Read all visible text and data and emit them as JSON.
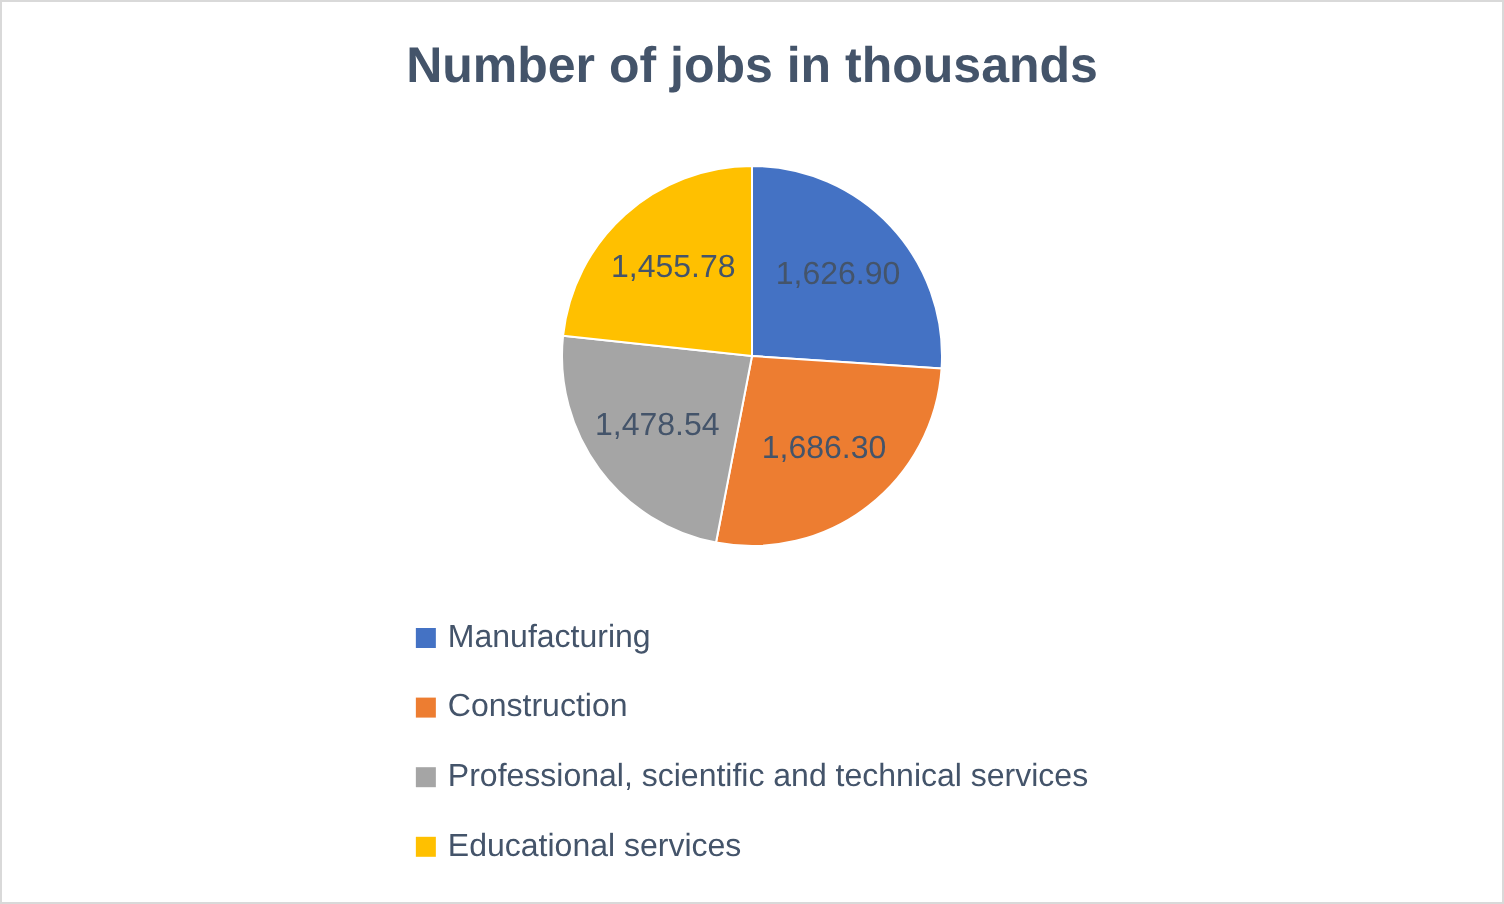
{
  "chart_data": {
    "type": "pie",
    "title": "Number of jobs in thousands",
    "categories": [
      "Manufacturing",
      "Construction",
      "Professional, scientific and technical services",
      "Educational services"
    ],
    "values": [
      1626.9,
      1686.3,
      1478.54,
      1455.78
    ],
    "colors": [
      "#4472c4",
      "#ed7d31",
      "#a5a5a5",
      "#ffc000"
    ],
    "value_labels": [
      "1,626.90",
      "1,686.30",
      "1,478.54",
      "1,455.78"
    ],
    "legend": "bottom"
  }
}
